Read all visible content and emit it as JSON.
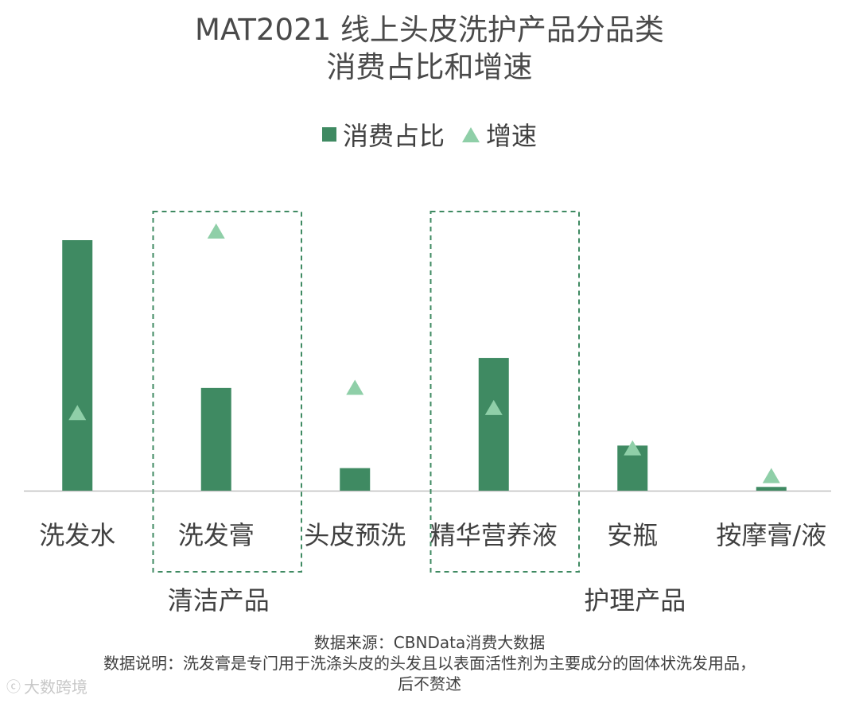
{
  "title_line1": "MAT2021 线上头皮洗护产品分品类",
  "title_line2": "消费占比和增速",
  "legend": {
    "share_label": "消费占比",
    "growth_label": "增速"
  },
  "groups": [
    {
      "label": "清洁产品",
      "categories": [
        "洗发膏"
      ]
    },
    {
      "label": "精华营养液",
      "categories": [
        "精华营养液"
      ]
    },
    {
      "label": "护理产品",
      "categories": [
        "安瓶"
      ]
    }
  ],
  "chart_data": {
    "type": "bar",
    "categories": [
      "洗发水",
      "洗发膏",
      "头皮预洗",
      "精华营养液",
      "安瓶",
      "按摩膏/液"
    ],
    "series": [
      {
        "name": "消费占比",
        "type": "bar",
        "values": [
          100,
          41,
          9,
          53,
          18,
          1.5
        ]
      },
      {
        "name": "增速",
        "type": "marker-triangle",
        "values": [
          28,
          100,
          38,
          30,
          14,
          3
        ]
      }
    ],
    "ylim": [
      0,
      100
    ],
    "group_labels": [
      "清洁产品",
      "护理产品"
    ],
    "colors": {
      "bar": "#3f8a62",
      "marker": "#8fcfa8",
      "box": "#3f8a62",
      "axis": "#bfbfbf"
    }
  },
  "footer": {
    "source": "数据来源：CBNData消费大数据",
    "note_line1": "数据说明：洗发膏是专门用于洗涤头皮的头发且以表面活性剂为主要成分的固体状洗发用品，",
    "note_line2": "后不赘述"
  },
  "watermark": "大数跨境"
}
